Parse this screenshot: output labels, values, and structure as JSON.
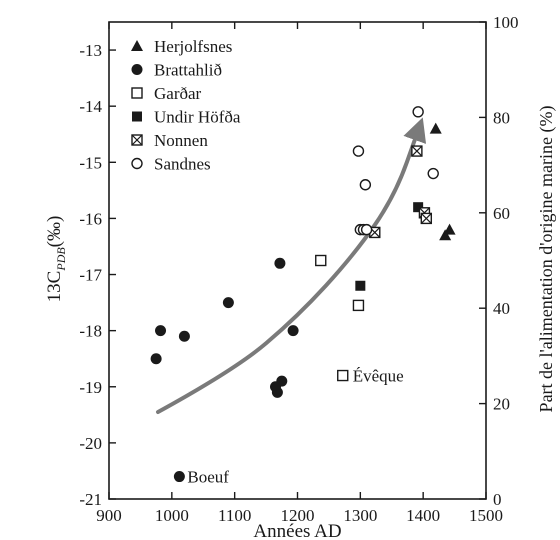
{
  "chart_data": {
    "type": "scatter",
    "xlabel": "Années AD",
    "ylabel": "13C",
    "ylabel_subscript": "PDB",
    "ylabel_unit": "(‰)",
    "y2label": "Part de l'alimentation d'origine marine (%)",
    "xlim": [
      900,
      1500
    ],
    "ylim": [
      -21,
      -12.5
    ],
    "y2lim": [
      0,
      100
    ],
    "xticks": [
      900,
      1000,
      1100,
      1200,
      1300,
      1400,
      1500
    ],
    "yticks": [
      -21,
      -20,
      -19,
      -18,
      -17,
      -16,
      -15,
      -14,
      -13
    ],
    "y2ticks": [
      0,
      20,
      40,
      60,
      80,
      100
    ],
    "grid": false,
    "legend_position": "top-left",
    "series": [
      {
        "name": "Herjolfsnes",
        "marker": "filled-triangle",
        "points": [
          [
            1420,
            -14.4
          ],
          [
            1435,
            -16.3
          ],
          [
            1442,
            -16.2
          ]
        ]
      },
      {
        "name": "Brattahlið",
        "marker": "filled-circle",
        "points": [
          [
            975,
            -18.5
          ],
          [
            982,
            -18.0
          ],
          [
            1020,
            -18.1
          ],
          [
            1090,
            -17.5
          ],
          [
            1165,
            -19.0
          ],
          [
            1168,
            -19.1
          ],
          [
            1172,
            -16.8
          ],
          [
            1175,
            -18.9
          ],
          [
            1193,
            -18.0
          ],
          [
            1012,
            -20.6
          ]
        ]
      },
      {
        "name": "Garðar",
        "marker": "open-square",
        "points": [
          [
            1237,
            -16.75
          ],
          [
            1297,
            -17.55
          ],
          [
            1272,
            -18.8
          ]
        ]
      },
      {
        "name": "Undir Höfða",
        "marker": "filled-square",
        "points": [
          [
            1300,
            -17.2
          ],
          [
            1392,
            -15.8
          ]
        ]
      },
      {
        "name": "Nonnen",
        "marker": "crossed-square",
        "points": [
          [
            1323,
            -16.25
          ],
          [
            1390,
            -14.8
          ],
          [
            1402,
            -15.9
          ],
          [
            1405,
            -16.0
          ]
        ]
      },
      {
        "name": "Sandnes",
        "marker": "open-circle",
        "points": [
          [
            1297,
            -14.8
          ],
          [
            1308,
            -15.4
          ],
          [
            1300,
            -16.2
          ],
          [
            1305,
            -16.2
          ],
          [
            1310,
            -16.2
          ],
          [
            1392,
            -14.1
          ],
          [
            1416,
            -15.2
          ]
        ]
      }
    ],
    "annotations": [
      {
        "text": "Boeuf",
        "x": 1012,
        "y": -20.6
      },
      {
        "text": "Évêque",
        "x": 1272,
        "y": -18.8
      }
    ],
    "trend_arrow": {
      "color": "#7a7a7a",
      "points": [
        [
          978,
          -19.45
        ],
        [
          1100,
          -18.7
        ],
        [
          1200,
          -17.75
        ],
        [
          1290,
          -16.65
        ],
        [
          1355,
          -15.6
        ],
        [
          1393,
          -14.4
        ]
      ]
    }
  }
}
